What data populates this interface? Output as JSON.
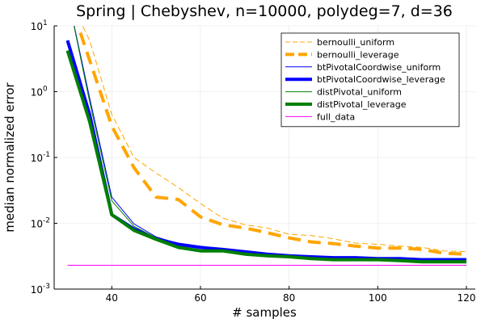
{
  "chart_data": {
    "type": "line",
    "title": "Spring | Chebyshev, n=10000, polydeg=7, d=36",
    "xlabel": "# samples",
    "ylabel": "median normalized error",
    "xlim": [
      27,
      122
    ],
    "ylim": [
      0.001,
      10
    ],
    "yscale": "log",
    "grid": true,
    "legend": "top-right",
    "x_ticks": [
      40,
      60,
      80,
      100,
      120
    ],
    "y_ticks": [
      {
        "value": 0.001,
        "base": "10",
        "exp": "-3"
      },
      {
        "value": 0.01,
        "base": "10",
        "exp": "-2"
      },
      {
        "value": 0.1,
        "base": "10",
        "exp": "-1"
      },
      {
        "value": 1,
        "base": "10",
        "exp": "0"
      },
      {
        "value": 10,
        "base": "10",
        "exp": "1"
      }
    ],
    "x": [
      30,
      35,
      40,
      45,
      50,
      55,
      60,
      65,
      70,
      75,
      80,
      85,
      90,
      95,
      100,
      105,
      110,
      115,
      120
    ],
    "series": [
      {
        "name": "bernoulli_uniform",
        "color": "#ffa500",
        "dash": "dashed-thin",
        "width": 1,
        "values": [
          30,
          6.0,
          0.45,
          0.1,
          0.058,
          0.035,
          0.02,
          0.012,
          0.0095,
          0.0085,
          0.0068,
          0.0065,
          0.0058,
          0.005,
          0.0048,
          0.0045,
          0.0043,
          0.0038,
          0.0037
        ]
      },
      {
        "name": "bernoulli_leverage",
        "color": "#ffa500",
        "dash": "dashed-thick",
        "width": 4,
        "values": [
          30,
          3.0,
          0.3,
          0.07,
          0.025,
          0.023,
          0.0125,
          0.0095,
          0.0085,
          0.0072,
          0.006,
          0.0052,
          0.0049,
          0.0045,
          0.0042,
          0.0042,
          0.004,
          0.0035,
          0.0034
        ]
      },
      {
        "name": "btPivotalCoordwise_uniform",
        "color": "#0000ff",
        "dash": "solid",
        "width": 1,
        "values": [
          30,
          0.8,
          0.025,
          0.0098,
          0.0062,
          0.0049,
          0.0043,
          0.0041,
          0.0037,
          0.0035,
          0.0033,
          0.0032,
          0.0031,
          0.003,
          0.003,
          0.0029,
          0.0029,
          0.0029,
          0.0029
        ]
      },
      {
        "name": "btPivotalCoordwise_leverage",
        "color": "#0000ff",
        "dash": "solid",
        "width": 4,
        "values": [
          6.0,
          0.45,
          0.0135,
          0.0082,
          0.0058,
          0.0048,
          0.0043,
          0.004,
          0.0037,
          0.0034,
          0.0032,
          0.0031,
          0.003,
          0.003,
          0.0029,
          0.0029,
          0.0028,
          0.0028,
          0.0028
        ]
      },
      {
        "name": "distPivotal_uniform",
        "color": "#008000",
        "dash": "solid",
        "width": 1,
        "values": [
          30,
          0.7,
          0.022,
          0.009,
          0.006,
          0.0045,
          0.0039,
          0.0038,
          0.0034,
          0.0032,
          0.0031,
          0.003,
          0.0029,
          0.0028,
          0.0028,
          0.0027,
          0.0027,
          0.0027,
          0.0027
        ]
      },
      {
        "name": "distPivotal_leverage",
        "color": "#008000",
        "dash": "solid",
        "width": 4,
        "values": [
          4.2,
          0.35,
          0.0135,
          0.0078,
          0.0057,
          0.0043,
          0.0038,
          0.0038,
          0.0034,
          0.0032,
          0.0031,
          0.0029,
          0.0028,
          0.0028,
          0.0028,
          0.0027,
          0.0026,
          0.0026,
          0.0026
        ]
      },
      {
        "name": "full_data",
        "color": "#ff00ff",
        "dash": "solid",
        "width": 1,
        "values": [
          0.0023,
          0.0023,
          0.0023,
          0.0023,
          0.0023,
          0.0023,
          0.0023,
          0.0023,
          0.0023,
          0.0023,
          0.0023,
          0.0023,
          0.0023,
          0.0023,
          0.0023,
          0.0023,
          0.0023,
          0.0023,
          0.0023
        ]
      }
    ]
  }
}
